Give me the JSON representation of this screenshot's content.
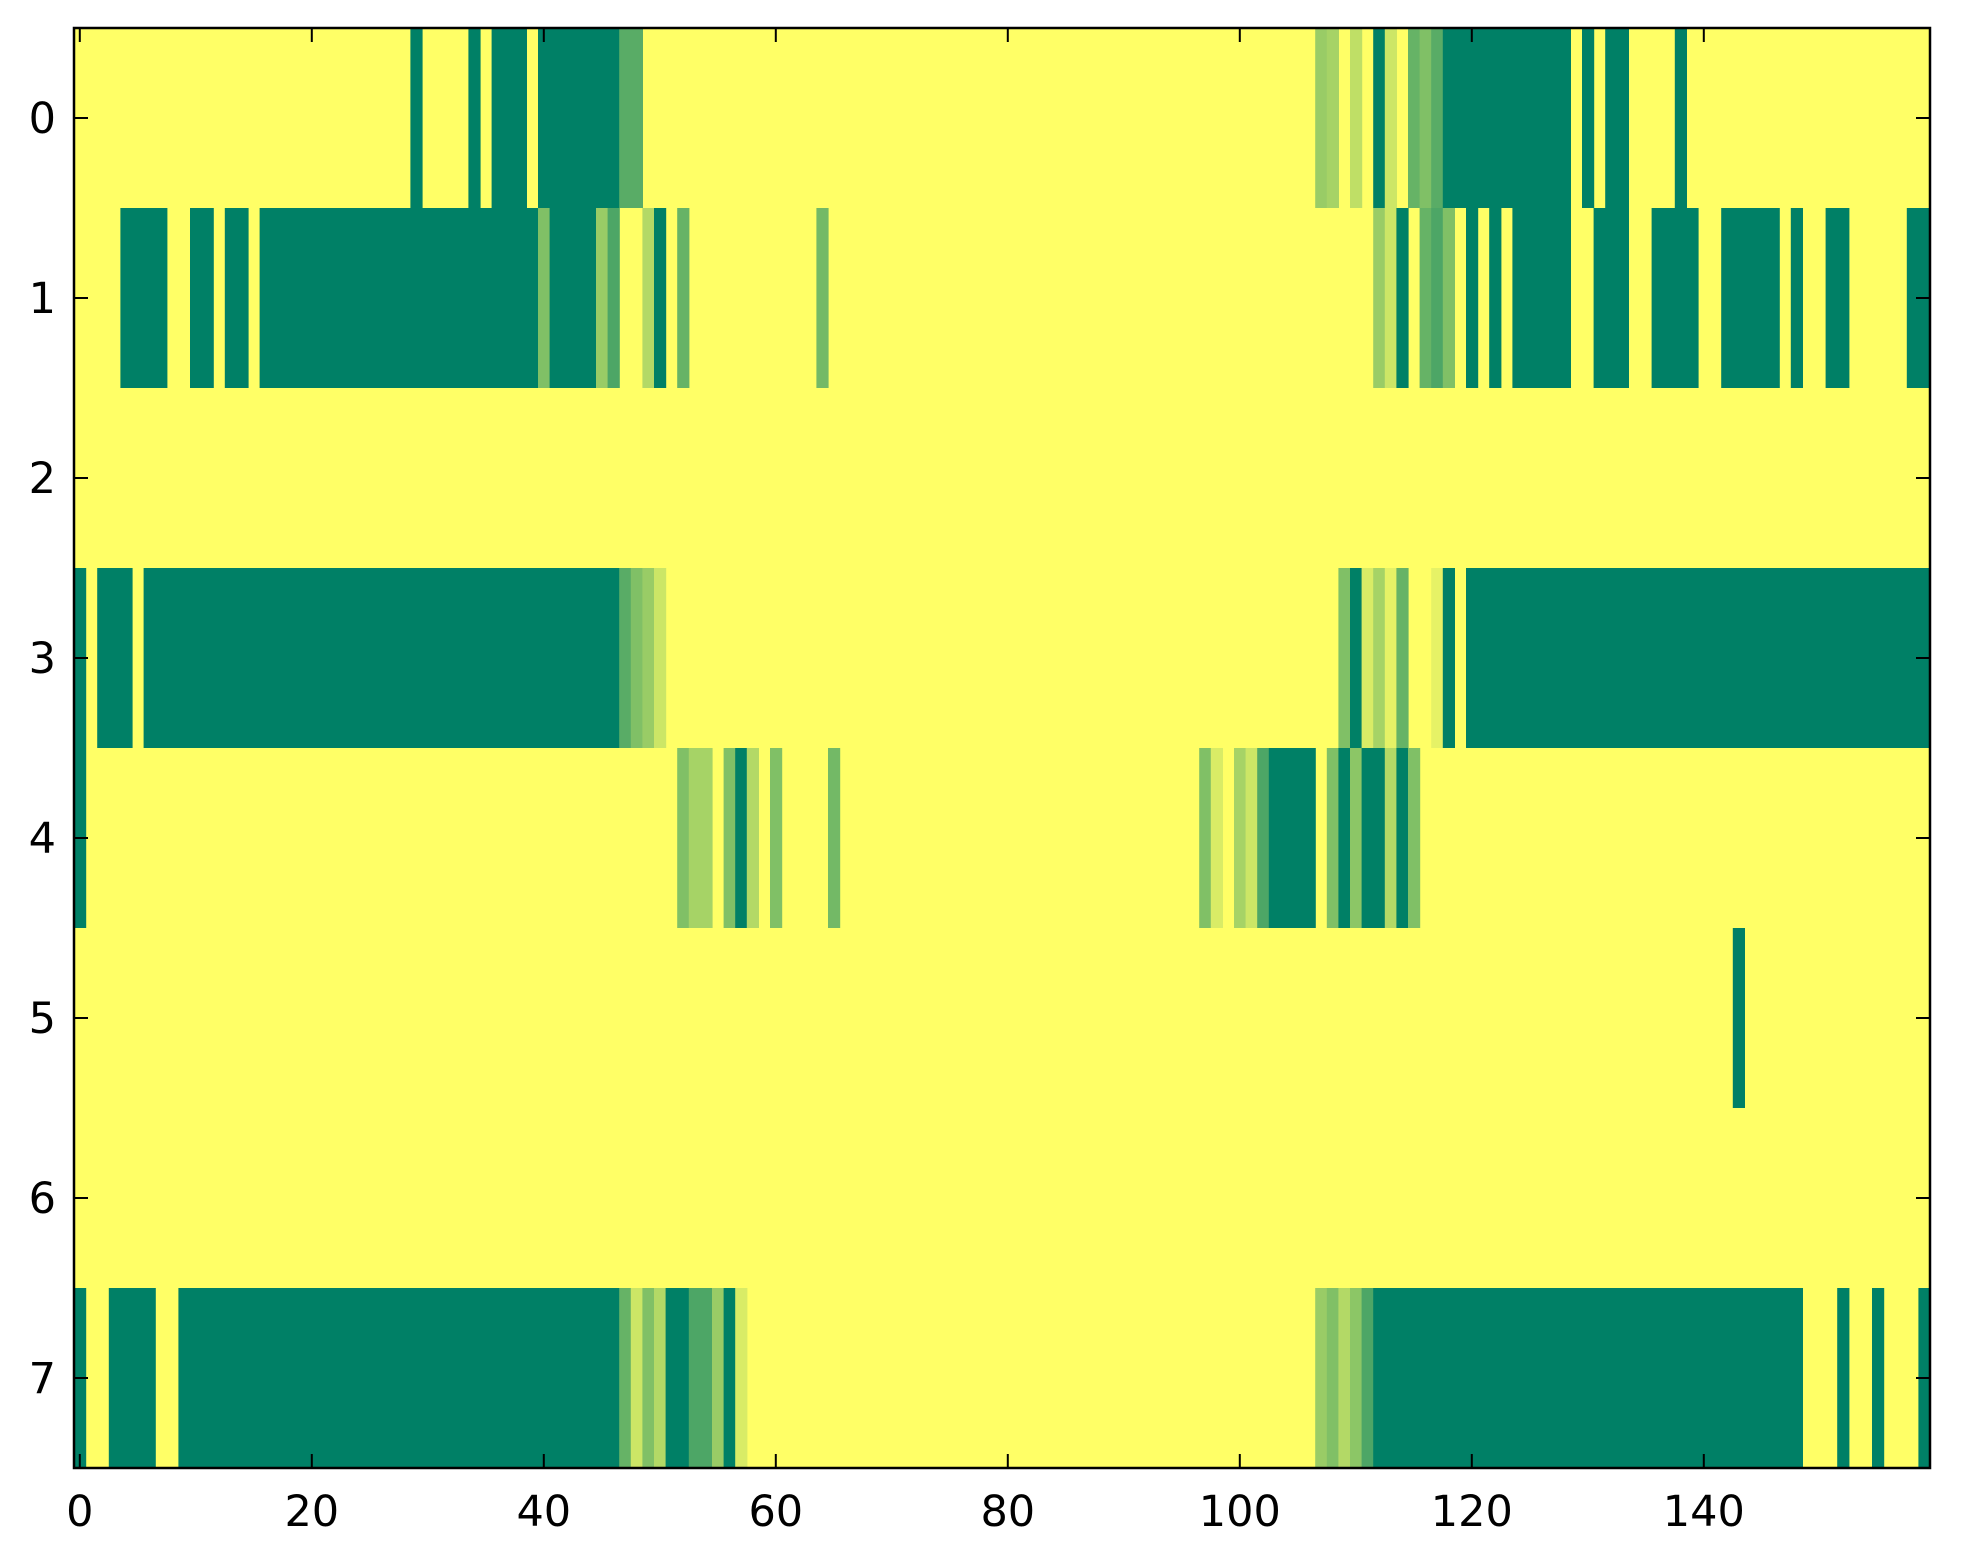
{
  "chart_data": {
    "type": "heatmap",
    "title": "",
    "xlabel": "",
    "ylabel": "",
    "xlim": [
      -0.5,
      159.5
    ],
    "ylim": [
      7.5,
      -0.5
    ],
    "x_ticks": [
      "0",
      "20",
      "40",
      "60",
      "80",
      "100",
      "120",
      "140"
    ],
    "x_tick_values": [
      0,
      20,
      40,
      60,
      80,
      100,
      120,
      140
    ],
    "y_ticks": [
      "0",
      "1",
      "2",
      "3",
      "4",
      "5",
      "6",
      "7"
    ],
    "y_tick_values": [
      0,
      1,
      2,
      3,
      4,
      5,
      6,
      7
    ],
    "colormap": "summer",
    "colors": {
      "low": "#008066",
      "high": "#FFFF66"
    },
    "value_range": [
      0,
      1
    ],
    "background_value": 1,
    "rows": 8,
    "cols": 160,
    "cells_below_max": [
      {
        "row": 0,
        "runs": [
          [
            29,
            29,
            0
          ],
          [
            34,
            34,
            0
          ],
          [
            36,
            38,
            0
          ],
          [
            40,
            46,
            0
          ],
          [
            47,
            48,
            0.35
          ],
          [
            107,
            107,
            0.6
          ],
          [
            108,
            108,
            0.65
          ],
          [
            110,
            110,
            0.75
          ],
          [
            112,
            112,
            0
          ],
          [
            113,
            113,
            0.8
          ],
          [
            115,
            115,
            0.4
          ],
          [
            116,
            116,
            0.5
          ],
          [
            117,
            117,
            0.35
          ],
          [
            118,
            128,
            0
          ],
          [
            130,
            130,
            0
          ],
          [
            132,
            133,
            0
          ],
          [
            138,
            138,
            0
          ]
        ]
      },
      {
        "row": 1,
        "runs": [
          [
            4,
            7,
            0
          ],
          [
            10,
            11,
            0
          ],
          [
            13,
            14,
            0
          ],
          [
            16,
            39,
            0
          ],
          [
            40,
            40,
            0.5
          ],
          [
            41,
            44,
            0
          ],
          [
            45,
            45,
            0.6
          ],
          [
            46,
            46,
            0.3
          ],
          [
            49,
            49,
            0.7
          ],
          [
            50,
            50,
            0
          ],
          [
            52,
            52,
            0.4
          ],
          [
            64,
            64,
            0.45
          ],
          [
            112,
            112,
            0.6
          ],
          [
            113,
            113,
            0.8
          ],
          [
            114,
            114,
            0
          ],
          [
            116,
            116,
            0.4
          ],
          [
            117,
            117,
            0.3
          ],
          [
            118,
            118,
            0.5
          ],
          [
            120,
            120,
            0
          ],
          [
            122,
            122,
            0
          ],
          [
            124,
            128,
            0
          ],
          [
            131,
            133,
            0
          ],
          [
            136,
            139,
            0
          ],
          [
            142,
            146,
            0
          ],
          [
            148,
            148,
            0
          ],
          [
            151,
            152,
            0
          ],
          [
            158,
            159,
            0
          ]
        ]
      },
      {
        "row": 3,
        "runs": [
          [
            0,
            0,
            0
          ],
          [
            2,
            4,
            0
          ],
          [
            6,
            46,
            0
          ],
          [
            47,
            47,
            0.35
          ],
          [
            48,
            48,
            0.5
          ],
          [
            49,
            49,
            0.6
          ],
          [
            50,
            50,
            0.8
          ],
          [
            109,
            109,
            0.5
          ],
          [
            110,
            110,
            0
          ],
          [
            111,
            111,
            0.85
          ],
          [
            112,
            112,
            0.65
          ],
          [
            113,
            113,
            0.9
          ],
          [
            114,
            114,
            0.4
          ],
          [
            117,
            117,
            0.9
          ],
          [
            118,
            118,
            0
          ],
          [
            120,
            159,
            0
          ]
        ]
      },
      {
        "row": 4,
        "runs": [
          [
            0,
            0,
            0
          ],
          [
            52,
            52,
            0.5
          ],
          [
            53,
            54,
            0.65
          ],
          [
            56,
            56,
            0.5
          ],
          [
            57,
            57,
            0
          ],
          [
            58,
            58,
            0.7
          ],
          [
            60,
            60,
            0.5
          ],
          [
            65,
            65,
            0.45
          ],
          [
            97,
            97,
            0.5
          ],
          [
            98,
            98,
            0.85
          ],
          [
            100,
            100,
            0.65
          ],
          [
            101,
            101,
            0.8
          ],
          [
            102,
            102,
            0.3
          ],
          [
            103,
            106,
            0
          ],
          [
            108,
            108,
            0.5
          ],
          [
            109,
            109,
            0
          ],
          [
            110,
            110,
            0.55
          ],
          [
            111,
            112,
            0
          ],
          [
            113,
            113,
            0.7
          ],
          [
            114,
            114,
            0
          ],
          [
            115,
            115,
            0.5
          ]
        ]
      },
      {
        "row": 5,
        "runs": [
          [
            143,
            143,
            0
          ]
        ]
      },
      {
        "row": 7,
        "runs": [
          [
            0,
            0,
            0
          ],
          [
            3,
            6,
            0
          ],
          [
            9,
            46,
            0
          ],
          [
            47,
            47,
            0.4
          ],
          [
            48,
            48,
            0.8
          ],
          [
            49,
            49,
            0.5
          ],
          [
            50,
            50,
            0.7
          ],
          [
            51,
            52,
            0
          ],
          [
            53,
            54,
            0.3
          ],
          [
            55,
            55,
            0.6
          ],
          [
            56,
            56,
            0
          ],
          [
            57,
            57,
            0.85
          ],
          [
            107,
            107,
            0.6
          ],
          [
            108,
            108,
            0.5
          ],
          [
            109,
            109,
            0.7
          ],
          [
            110,
            110,
            0.55
          ],
          [
            111,
            111,
            0.3
          ],
          [
            112,
            148,
            0
          ],
          [
            152,
            152,
            0
          ],
          [
            155,
            155,
            0
          ],
          [
            159,
            159,
            0
          ]
        ]
      }
    ]
  }
}
